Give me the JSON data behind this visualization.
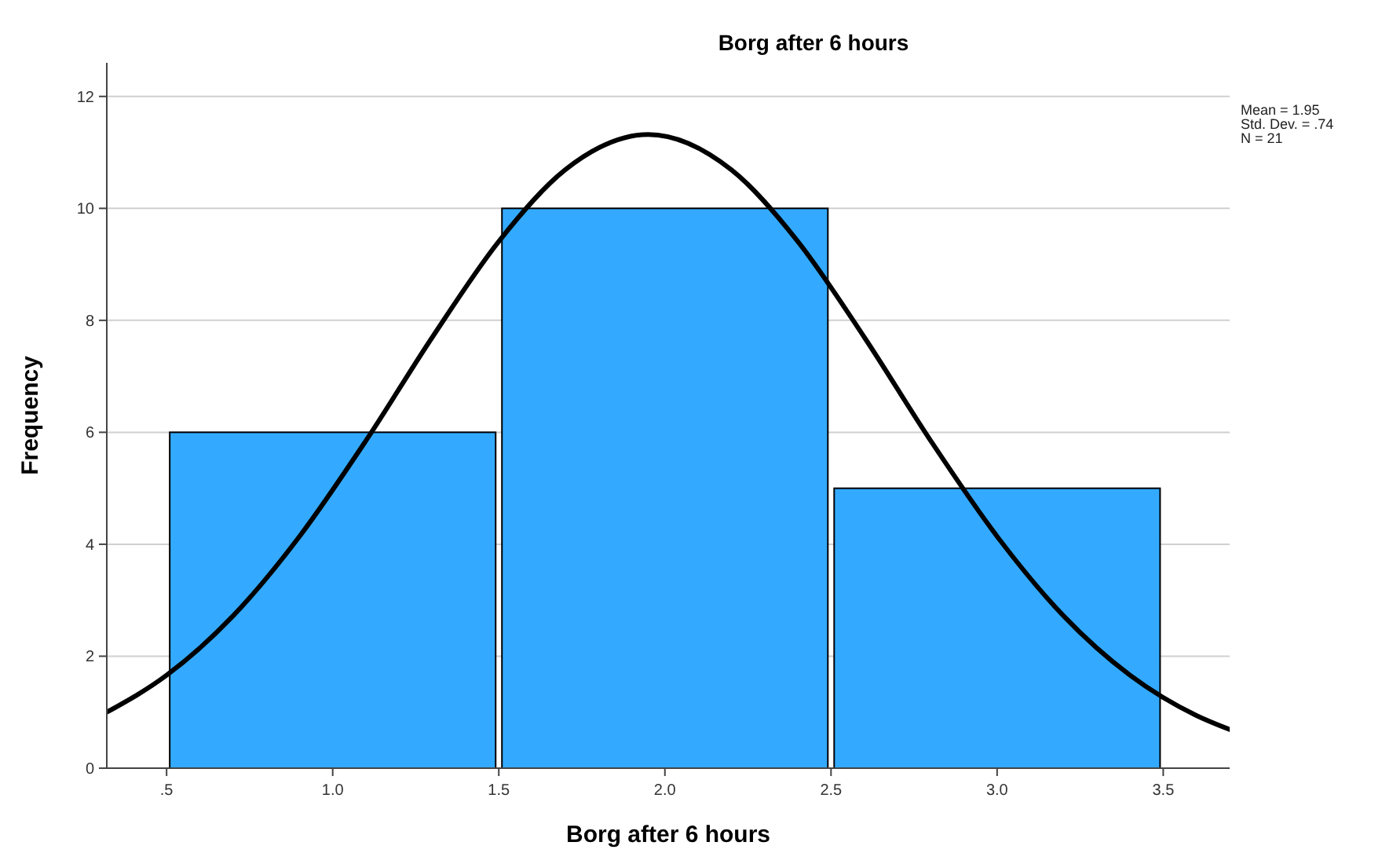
{
  "chart_data": {
    "type": "histogram",
    "title": "Borg after 6 hours",
    "xlabel": "Borg after 6 hours",
    "ylabel": "Frequency",
    "series": [
      {
        "bins": [
          0.5,
          1.5,
          2.5,
          3.5
        ],
        "values": [
          6,
          10,
          5
        ],
        "color": "#33aaff"
      },
      {
        "type": "line",
        "color": "#000000",
        "x": [
          0.32,
          0.5,
          0.7,
          0.9,
          1.1,
          1.3,
          1.5,
          1.7,
          1.95,
          2.2,
          2.4,
          2.6,
          2.8,
          3.0,
          3.2,
          3.4,
          3.6,
          3.7
        ],
        "values": [
          1.0,
          1.66,
          2.72,
          4.14,
          5.85,
          7.7,
          9.41,
          10.69,
          11.32,
          10.69,
          9.41,
          7.7,
          5.85,
          4.14,
          2.72,
          1.66,
          0.94,
          0.69
        ]
      }
    ],
    "xlim": [
      0.32,
      3.7
    ],
    "xticks": [
      {
        "value": 0.5,
        "label": ".5"
      },
      {
        "value": 1,
        "label": "1.0"
      },
      {
        "value": 1.5,
        "label": "1.5"
      },
      {
        "value": 2,
        "label": "2.0"
      },
      {
        "value": 2.5,
        "label": "2.5"
      },
      {
        "value": 3,
        "label": "3.0"
      },
      {
        "value": 3.5,
        "label": "3.5"
      }
    ],
    "ylim": [
      0,
      12.6
    ],
    "yticks": [
      0,
      2,
      4,
      6,
      8,
      10,
      12
    ],
    "grid": "y",
    "annotations": [
      "Mean = 1.95",
      "Std. Dev. = .74",
      "N = 21"
    ]
  }
}
